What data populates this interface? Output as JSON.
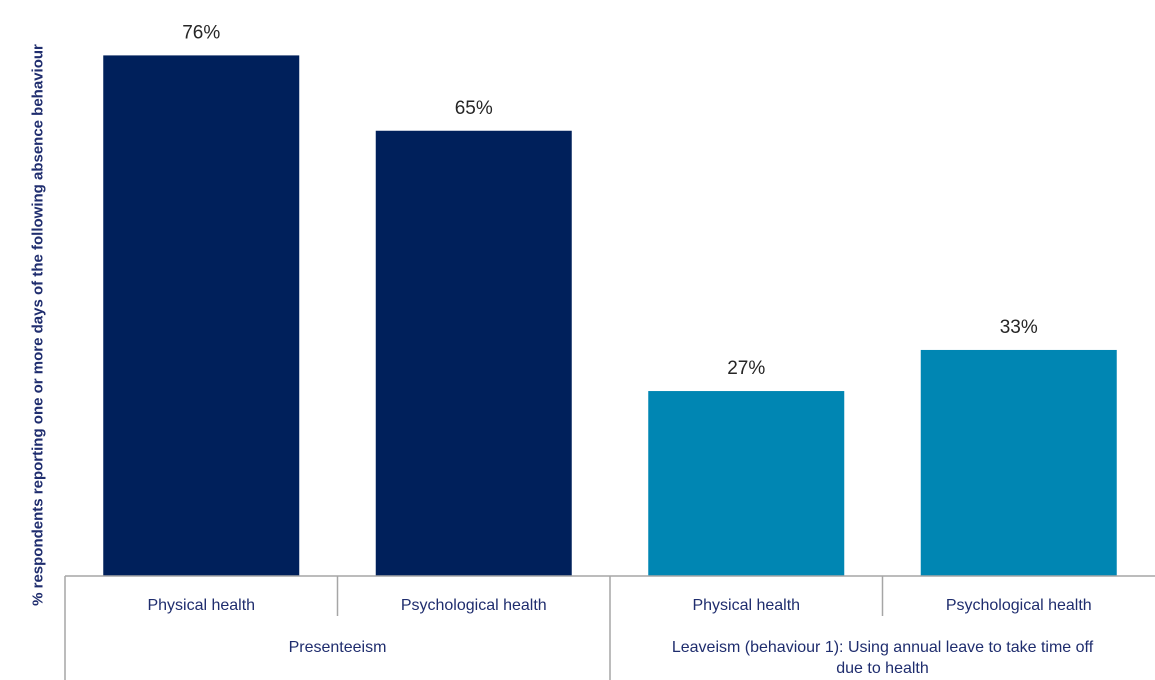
{
  "chart_data": {
    "type": "bar",
    "ylabel": "% respondents reporting one or more days of the following absence behaviour",
    "ylim": [
      0,
      80
    ],
    "categories": [
      "Physical health",
      "Psychological health",
      "Physical health",
      "Psychological health"
    ],
    "values": [
      76,
      65,
      27,
      33
    ],
    "data_labels": [
      "76%",
      "65%",
      "27%",
      "33%"
    ],
    "groups": [
      {
        "label": "Presenteeism",
        "category_count": 2,
        "color": "#00205b"
      },
      {
        "label": "Leaveism (behaviour 1): Using annual leave to take time off due to health",
        "label_lines": [
          "Leaveism (behaviour 1): Using annual leave to take time off",
          "due to health"
        ],
        "category_count": 2,
        "color": "#0086b3"
      }
    ],
    "grid": false,
    "legend": "none",
    "colors": {
      "text": "#1f2d6e",
      "label_text": "#262626",
      "axis": "#a6a6a6"
    }
  }
}
